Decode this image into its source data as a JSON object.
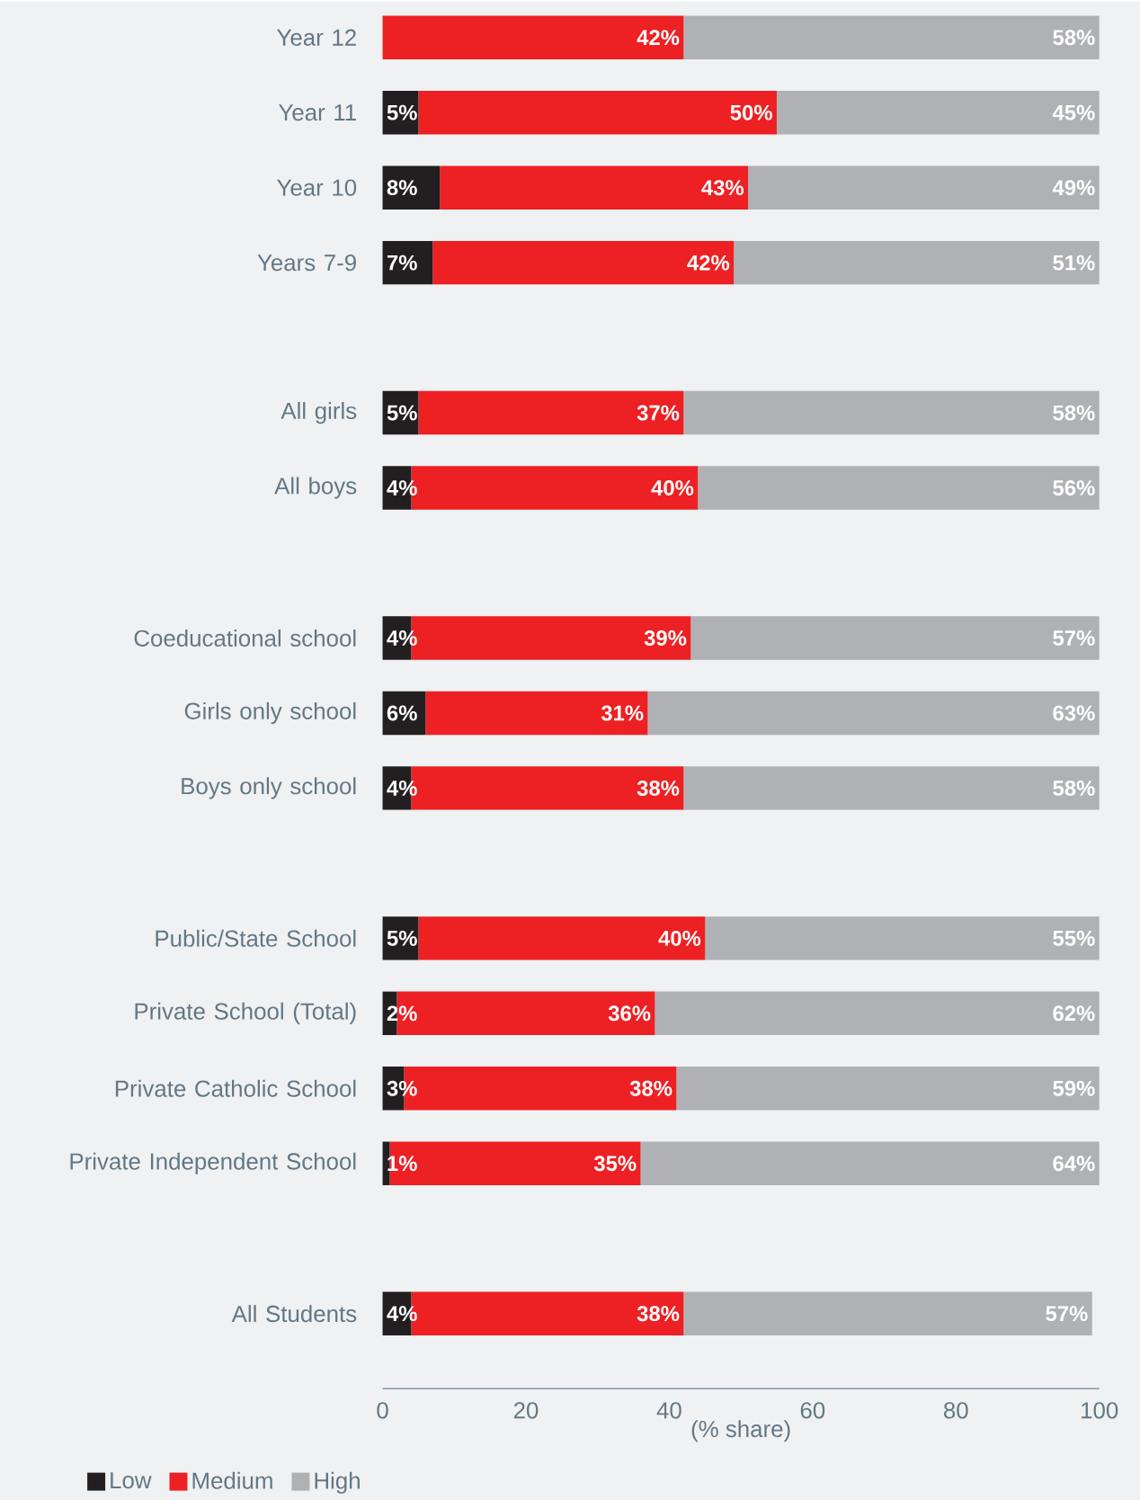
{
  "chart_data": {
    "type": "bar",
    "orientation": "horizontal",
    "stacked": true,
    "xlabel": "(% share)",
    "categories": [
      "Year 12",
      "Year 11",
      "Year 10",
      "Years 7-9",
      null,
      "All girls",
      "All boys",
      null,
      "Coeducational school",
      "Girls only school",
      "Boys only school",
      null,
      "Public/State School",
      "Private School (Total)",
      "Private Catholic School",
      "Private Independent School",
      null,
      "All Students"
    ],
    "series": [
      {
        "name": "Low",
        "color": "#231f20",
        "values": [
          0,
          5,
          8,
          7,
          null,
          5,
          4,
          null,
          4,
          6,
          4,
          null,
          5,
          2,
          3,
          1,
          null,
          4
        ],
        "value_labels": [
          null,
          "5%",
          "8%",
          "7%",
          null,
          "5%",
          "4%",
          null,
          "4%",
          "6%",
          "4%",
          null,
          "5%",
          "2%",
          "3%",
          "1%",
          null,
          "4%"
        ]
      },
      {
        "name": "Medium",
        "color": "#ed2024",
        "values": [
          42,
          50,
          43,
          42,
          null,
          37,
          40,
          null,
          39,
          31,
          38,
          null,
          40,
          36,
          38,
          35,
          null,
          38
        ],
        "value_labels": [
          "42%",
          "50%",
          "43%",
          "42%",
          null,
          "37%",
          "40%",
          null,
          "39%",
          "31%",
          "38%",
          null,
          "40%",
          "36%",
          "38%",
          "35%",
          null,
          "38%"
        ]
      },
      {
        "name": "High",
        "color": "#b0b1b4",
        "values": [
          58,
          45,
          49,
          51,
          null,
          58,
          56,
          null,
          57,
          63,
          58,
          null,
          55,
          62,
          59,
          64,
          null,
          57
        ],
        "value_labels": [
          "58%",
          "45%",
          "49%",
          "51%",
          null,
          "58%",
          "56%",
          null,
          "57%",
          "63%",
          "58%",
          null,
          "55%",
          "62%",
          "59%",
          "64%",
          null,
          "57%"
        ]
      }
    ],
    "xlim": [
      0,
      100
    ],
    "xticks": [
      0,
      20,
      40,
      60,
      80,
      100
    ],
    "legend": "bottom left"
  }
}
